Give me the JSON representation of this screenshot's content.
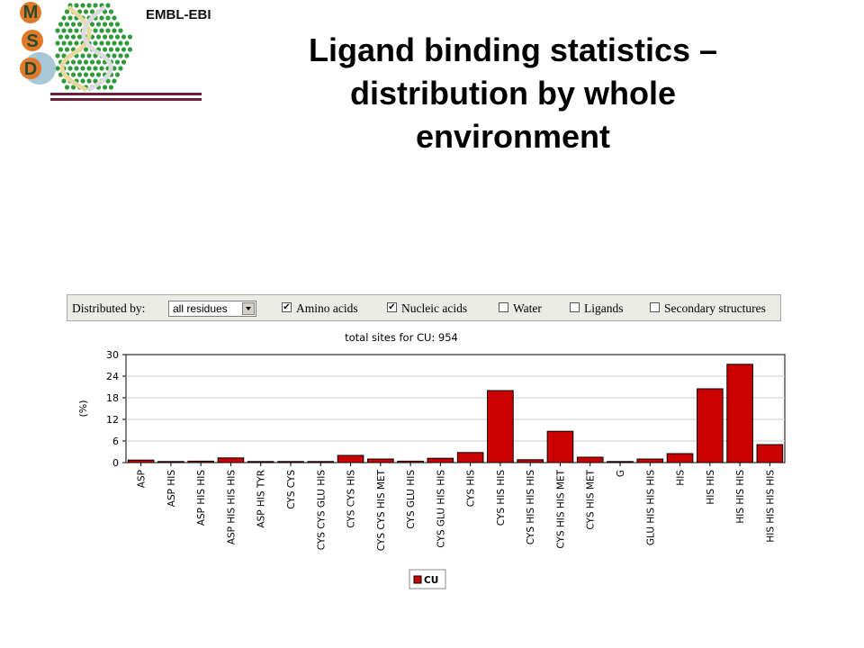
{
  "header": {
    "org": "EMBL-EBI",
    "logo_letters": [
      "M",
      "S",
      "D"
    ],
    "title_lines": [
      "Ligand binding statistics –",
      "distribution by whole",
      "environment"
    ]
  },
  "toolbar": {
    "distributed_label": "Distributed by:",
    "select_value": "all residues",
    "options": [
      {
        "label": "Amino acids",
        "checked": true,
        "mark": "✔"
      },
      {
        "label": "Nucleic acids",
        "checked": true,
        "mark": "✔"
      },
      {
        "label": "Water",
        "checked": false,
        "mark": ""
      },
      {
        "label": "Ligands",
        "checked": false,
        "mark": ""
      },
      {
        "label": "Secondary structures",
        "checked": false,
        "mark": ""
      }
    ]
  },
  "chart_data": {
    "type": "bar",
    "title": "total sites  for CU: 954",
    "ylabel": "(%)",
    "xlabel": "",
    "ylim": [
      0,
      30
    ],
    "yticks": [
      0,
      6,
      12,
      18,
      24,
      30
    ],
    "grid": true,
    "bar_color": "#cc0000",
    "categories": [
      "ASP",
      "ASP HIS",
      "ASP HIS HIS",
      "ASP HIS HIS HIS",
      "ASP HIS TYR",
      "CYS CYS",
      "CYS CYS GLU HIS",
      "CYS CYS HIS",
      "CYS CYS HIS MET",
      "CYS GLU HIS",
      "CYS GLU HIS HIS",
      "CYS HIS",
      "CYS HIS HIS",
      "CYS HIS HIS HIS",
      "CYS HIS HIS MET",
      "CYS HIS MET",
      "G",
      "GLU HIS HIS HIS",
      "HIS",
      "HIS HIS",
      "HIS HIS HIS",
      "HIS HIS HIS HIS"
    ],
    "series": [
      {
        "name": "CU",
        "values": [
          0.7,
          0.3,
          0.4,
          1.3,
          0.3,
          0.3,
          0.3,
          2.0,
          1.0,
          0.4,
          1.2,
          2.8,
          20.0,
          0.8,
          8.7,
          1.5,
          0.3,
          1.0,
          2.5,
          20.5,
          27.3,
          5.0
        ]
      }
    ],
    "legend": "bottom-center"
  }
}
